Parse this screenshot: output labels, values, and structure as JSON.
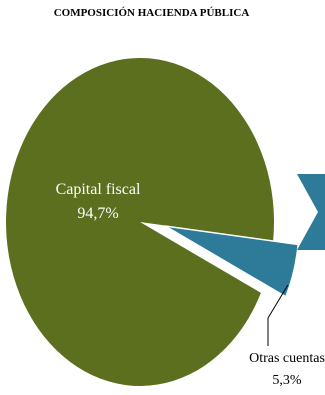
{
  "chart_data": {
    "type": "pie",
    "title": "COMPOSICIÓN HACIENDA PÚBLICA",
    "slices": [
      {
        "label": "Capital fiscal",
        "value_label": "94,7%",
        "value": 94.7,
        "color": "#5b6f1e",
        "label_color": "#ffffff"
      },
      {
        "label": "Otras cuentas",
        "value_label": "5,3%",
        "value": 5.3,
        "color": "#2e7a99",
        "label_color": "#000000",
        "exploded": true
      }
    ],
    "decoration_color": "#2e7a99"
  }
}
